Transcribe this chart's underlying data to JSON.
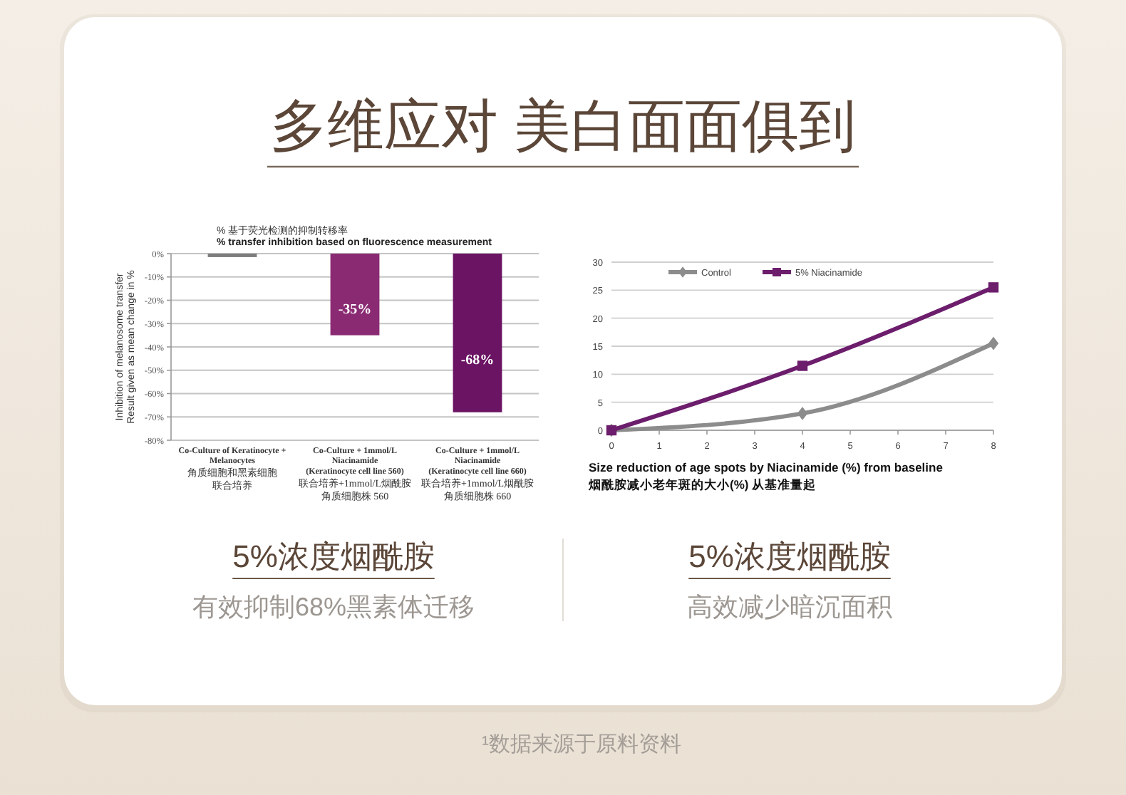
{
  "chart_data": [
    {
      "type": "other",
      "title": "多维应对 美白面面俱到"
    },
    {
      "type": "bar",
      "title": "% 基于荧光检测的抑制转移率",
      "subtitle": "% transfer inhibition based on fluorescence measurement",
      "ylabel": "Inhibition of melanosome transfer\nResult given as mean change in %",
      "categories": [
        "Co-Culture of Keratinocyte +\nMelanocytes\n角质细胞和黑素细胞联合培养",
        "Co-Culture + 1mmol/L\nNiacinamide\n(Keratinocyte cell line 560)\n联合培养+1mmol/L烟酰胺角质细胞株 560",
        "Co-Culture + 1mmol/L\nNiacinamide\n(Keratinocyte cell line 660)\n联合培养+1mmol/L烟酰胺角质细胞株 660"
      ],
      "values": [
        -1.5,
        -35,
        -68
      ],
      "colors": [
        "#7d7d7d",
        "#8a2a73",
        "#6a1463"
      ],
      "value_labels": [
        null,
        "-35%",
        "-68%"
      ],
      "ylim": [
        -80,
        0
      ],
      "yticks": [
        {
          "value": 0,
          "label": "0%"
        },
        {
          "value": -10,
          "label": "-10%"
        },
        {
          "value": -20,
          "label": "-20%"
        },
        {
          "value": -30,
          "label": "-30%"
        },
        {
          "value": -40,
          "label": "-40%"
        },
        {
          "value": -50,
          "label": "-50%"
        },
        {
          "value": -60,
          "label": "-60%"
        },
        {
          "value": -70,
          "label": "-70%"
        },
        {
          "value": -80,
          "label": "-80%"
        }
      ],
      "grid": "y",
      "annotations": [
        "5%浓度烟酰胺",
        "有效抑制68%黑素体迁移"
      ]
    },
    {
      "type": "line",
      "xlabel": "Size reduction of age spots by Niacinamide (%) from baseline\n烟酰胺减小老年斑的大小(%) 从基准量起",
      "x": [
        0,
        4,
        8
      ],
      "series": [
        {
          "name": "Control",
          "color": "#8c8c8c",
          "marker": "diamond",
          "values": [
            0,
            3,
            15.5
          ]
        },
        {
          "name": "5% Niacinamide",
          "color": "#6c1d6c",
          "marker": "square",
          "values": [
            0,
            11.5,
            25.5
          ]
        }
      ],
      "xlim": [
        0,
        8
      ],
      "xticks": [
        0,
        1,
        2,
        3,
        4,
        5,
        6,
        7,
        8
      ],
      "ylim": [
        0,
        30
      ],
      "yticks": [
        0,
        5,
        10,
        15,
        20,
        25,
        30
      ],
      "grid": "y",
      "legend": "top left",
      "annotations": [
        "5%浓度烟酰胺",
        "高效减少暗沉面积"
      ]
    },
    {
      "type": "other",
      "annotations": [
        "¹数据来源于原料资料"
      ]
    }
  ]
}
